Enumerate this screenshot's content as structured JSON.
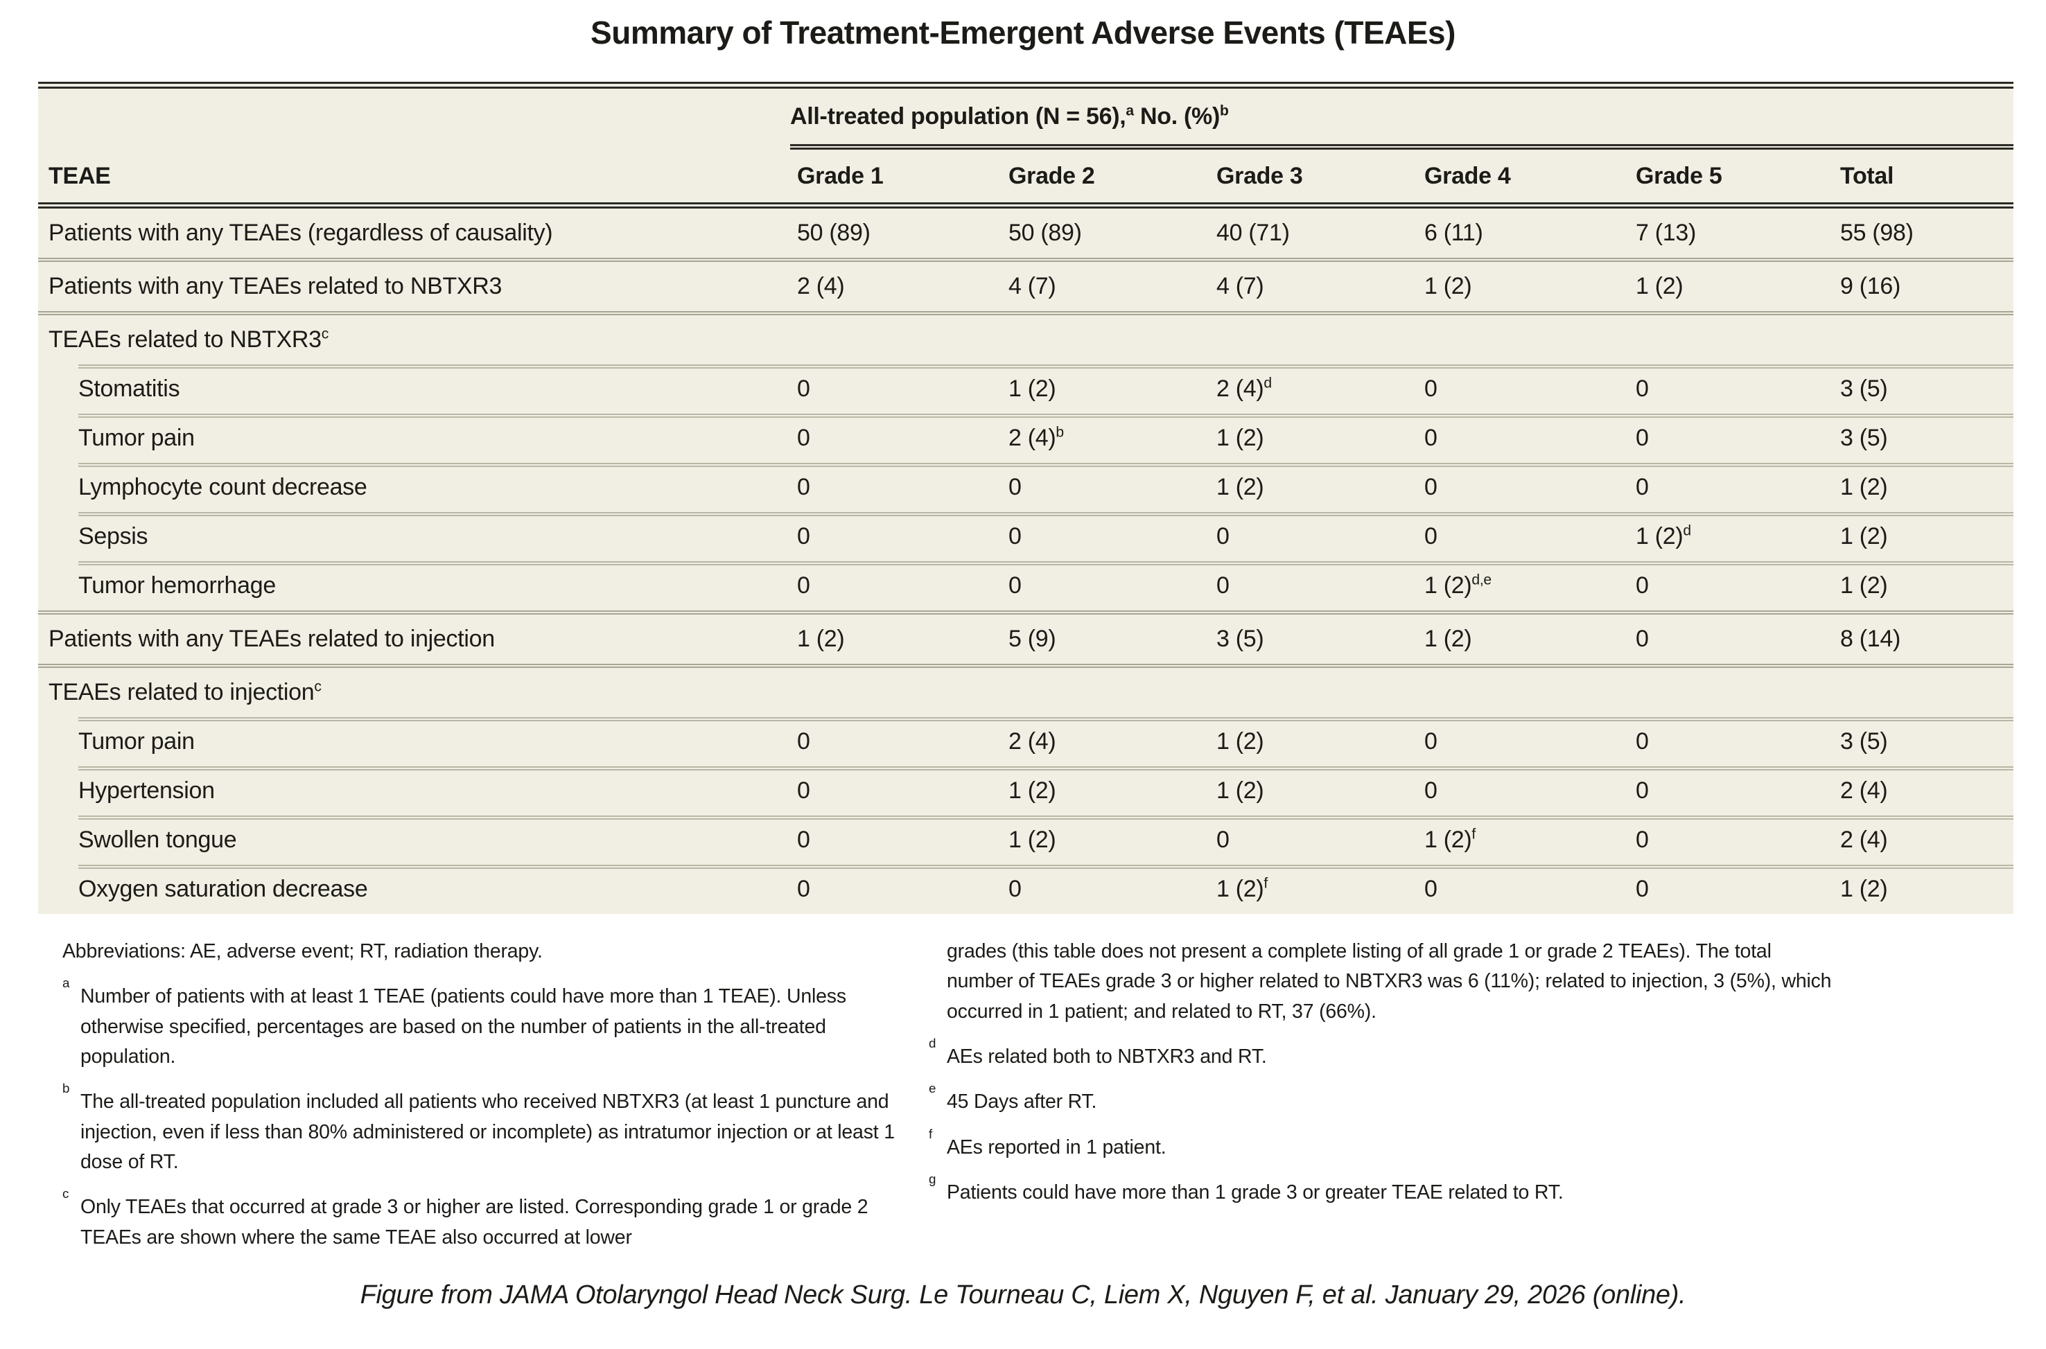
{
  "title": "Summary of Treatment-Emergent Adverse Events (TEAEs)",
  "table": {
    "span_header": "All-treated population (N = 56),^{a} No. (%)^{b}",
    "col_headers": [
      "TEAE",
      "Grade 1",
      "Grade 2",
      "Grade 3",
      "Grade 4",
      "Grade 5",
      "Total"
    ],
    "rows": [
      {
        "label": "Patients with any TEAEs (regardless of causality)",
        "cells": [
          "50 (89)",
          "50 (89)",
          "40 (71)",
          "6 (11)",
          "7 (13)",
          "55 (98)"
        ]
      },
      {
        "label": "Patients with any TEAEs related to NBTXR3",
        "cells": [
          "2 (4)",
          "4 (7)",
          "4 (7)",
          "1 (2)",
          "1 (2)",
          "9 (16)"
        ]
      },
      {
        "label": "TEAEs related to NBTXR3^{c}",
        "cells": [
          "",
          "",
          "",
          "",
          "",
          ""
        ]
      },
      {
        "label": "Stomatitis",
        "cells": [
          "0",
          "1 (2)",
          "2 (4)^{d}",
          "0",
          "0",
          "3 (5)"
        ]
      },
      {
        "label": "Tumor pain",
        "cells": [
          "0",
          "2 (4)^{b}",
          "1 (2)",
          "0",
          "0",
          "3 (5)"
        ]
      },
      {
        "label": "Lymphocyte count decrease",
        "cells": [
          "0",
          "0",
          "1 (2)",
          "0",
          "0",
          "1 (2)"
        ]
      },
      {
        "label": "Sepsis",
        "cells": [
          "0",
          "0",
          "0",
          "0",
          "1 (2)^{d}",
          "1 (2)"
        ]
      },
      {
        "label": "Tumor hemorrhage",
        "cells": [
          "0",
          "0",
          "0",
          "1 (2)^{d,e}",
          "0",
          "1 (2)"
        ]
      },
      {
        "label": "Patients with any TEAEs related to injection",
        "cells": [
          "1 (2)",
          "5 (9)",
          "3 (5)",
          "1 (2)",
          "0",
          "8 (14)"
        ]
      },
      {
        "label": "TEAEs related to injection^{c}",
        "cells": [
          "",
          "",
          "",
          "",
          "",
          ""
        ]
      },
      {
        "label": "Tumor pain",
        "cells": [
          "0",
          "2 (4)",
          "1 (2)",
          "0",
          "0",
          "3 (5)"
        ]
      },
      {
        "label": "Hypertension",
        "cells": [
          "0",
          "1 (2)",
          "1 (2)",
          "0",
          "0",
          "2 (4)"
        ]
      },
      {
        "label": "Swollen tongue",
        "cells": [
          "0",
          "1 (2)",
          "0",
          "1 (2)^{f}",
          "0",
          "2 (4)"
        ]
      },
      {
        "label": "Oxygen saturation decrease",
        "cells": [
          "0",
          "0",
          "1 (2)^{f}",
          "0",
          "0",
          "1 (2)"
        ]
      }
    ]
  },
  "footnotes": {
    "left": [
      {
        "marker": "",
        "text": "Abbreviations: AE, adverse event; RT, radiation therapy."
      },
      {
        "marker": "a",
        "text": "Number of patients with at least 1 TEAE (patients could have more than 1 TEAE). Unless otherwise specified, percentages are based on the number of patients in the all-treated population."
      },
      {
        "marker": "b",
        "text": "The all-treated population included all patients who received NBTXR3 (at least 1 puncture and injection, even if less than 80% administered or incomplete) as intratumor injection or at least 1 dose of RT."
      },
      {
        "marker": "c",
        "text": "Only TEAEs that occurred at grade 3 or higher are listed. Corresponding grade 1 or grade 2 TEAEs are shown where the same TEAE also occurred at lower"
      }
    ],
    "right": [
      {
        "marker": "",
        "text": "grades (this table does not present a complete listing of all grade 1 or grade 2 TEAEs). The total number of TEAEs grade 3 or higher related to NBTXR3 was 6 (11%); related to injection, 3 (5%), which occurred in 1 patient; and related to RT, 37 (66%)."
      },
      {
        "marker": "d",
        "text": "AEs related both to NBTXR3 and RT."
      },
      {
        "marker": "e",
        "text": "45 Days after RT."
      },
      {
        "marker": "f",
        "text": "AEs reported in 1 patient."
      },
      {
        "marker": "g",
        "text": "Patients could have more than 1 grade 3 or greater TEAE related to RT."
      }
    ]
  },
  "caption": "Figure from JAMA Otolaryngol Head Neck Surg. Le Tourneau C, Liem X, Nguyen F, et al. January 29, 2026 (online).",
  "colors": {
    "table_background": "#f1efe3",
    "rule_dark": "#2c2b27",
    "rule_light": "#b9b6a7",
    "text": "#1c1b18"
  }
}
